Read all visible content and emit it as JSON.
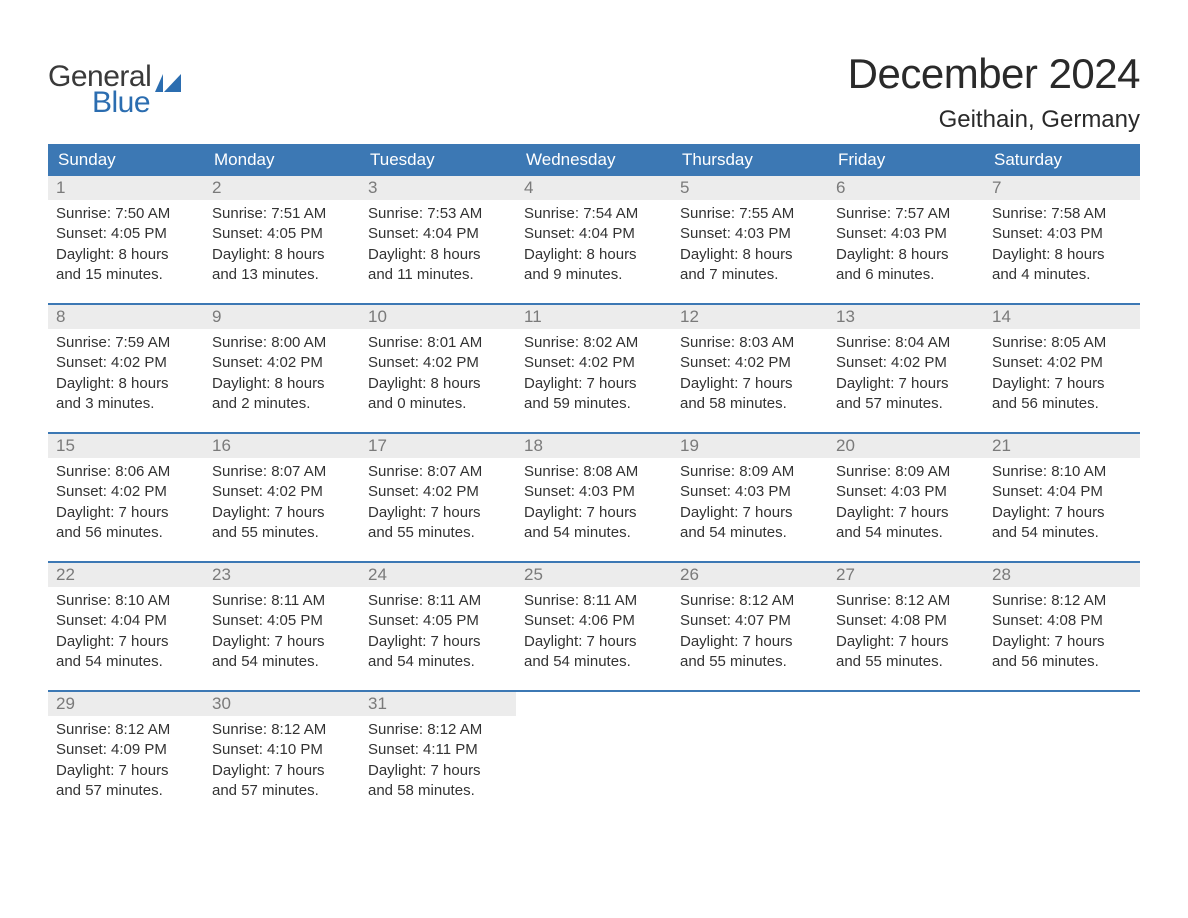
{
  "logo": {
    "text_general": "General",
    "text_blue": "Blue",
    "flag_color": "#2b6db0",
    "general_color": "#3a3a3a"
  },
  "header": {
    "title": "December 2024",
    "subtitle": "Geithain, Germany"
  },
  "colors": {
    "header_bg": "#3c78b4",
    "header_text": "#ffffff",
    "week_border": "#3c78b4",
    "daynum_bg": "#ececec",
    "daynum_text": "#7a7a7a",
    "body_text": "#333333",
    "page_bg": "#ffffff"
  },
  "typography": {
    "title_fontsize": 42,
    "subtitle_fontsize": 24,
    "dow_fontsize": 17,
    "daynum_fontsize": 17,
    "body_fontsize": 15
  },
  "layout": {
    "columns": 7,
    "rows": 5,
    "cell_min_height": 108
  },
  "days_of_week": [
    "Sunday",
    "Monday",
    "Tuesday",
    "Wednesday",
    "Thursday",
    "Friday",
    "Saturday"
  ],
  "weeks": [
    [
      {
        "n": "1",
        "sunrise": "Sunrise: 7:50 AM",
        "sunset": "Sunset: 4:05 PM",
        "d1": "Daylight: 8 hours",
        "d2": "and 15 minutes."
      },
      {
        "n": "2",
        "sunrise": "Sunrise: 7:51 AM",
        "sunset": "Sunset: 4:05 PM",
        "d1": "Daylight: 8 hours",
        "d2": "and 13 minutes."
      },
      {
        "n": "3",
        "sunrise": "Sunrise: 7:53 AM",
        "sunset": "Sunset: 4:04 PM",
        "d1": "Daylight: 8 hours",
        "d2": "and 11 minutes."
      },
      {
        "n": "4",
        "sunrise": "Sunrise: 7:54 AM",
        "sunset": "Sunset: 4:04 PM",
        "d1": "Daylight: 8 hours",
        "d2": "and 9 minutes."
      },
      {
        "n": "5",
        "sunrise": "Sunrise: 7:55 AM",
        "sunset": "Sunset: 4:03 PM",
        "d1": "Daylight: 8 hours",
        "d2": "and 7 minutes."
      },
      {
        "n": "6",
        "sunrise": "Sunrise: 7:57 AM",
        "sunset": "Sunset: 4:03 PM",
        "d1": "Daylight: 8 hours",
        "d2": "and 6 minutes."
      },
      {
        "n": "7",
        "sunrise": "Sunrise: 7:58 AM",
        "sunset": "Sunset: 4:03 PM",
        "d1": "Daylight: 8 hours",
        "d2": "and 4 minutes."
      }
    ],
    [
      {
        "n": "8",
        "sunrise": "Sunrise: 7:59 AM",
        "sunset": "Sunset: 4:02 PM",
        "d1": "Daylight: 8 hours",
        "d2": "and 3 minutes."
      },
      {
        "n": "9",
        "sunrise": "Sunrise: 8:00 AM",
        "sunset": "Sunset: 4:02 PM",
        "d1": "Daylight: 8 hours",
        "d2": "and 2 minutes."
      },
      {
        "n": "10",
        "sunrise": "Sunrise: 8:01 AM",
        "sunset": "Sunset: 4:02 PM",
        "d1": "Daylight: 8 hours",
        "d2": "and 0 minutes."
      },
      {
        "n": "11",
        "sunrise": "Sunrise: 8:02 AM",
        "sunset": "Sunset: 4:02 PM",
        "d1": "Daylight: 7 hours",
        "d2": "and 59 minutes."
      },
      {
        "n": "12",
        "sunrise": "Sunrise: 8:03 AM",
        "sunset": "Sunset: 4:02 PM",
        "d1": "Daylight: 7 hours",
        "d2": "and 58 minutes."
      },
      {
        "n": "13",
        "sunrise": "Sunrise: 8:04 AM",
        "sunset": "Sunset: 4:02 PM",
        "d1": "Daylight: 7 hours",
        "d2": "and 57 minutes."
      },
      {
        "n": "14",
        "sunrise": "Sunrise: 8:05 AM",
        "sunset": "Sunset: 4:02 PM",
        "d1": "Daylight: 7 hours",
        "d2": "and 56 minutes."
      }
    ],
    [
      {
        "n": "15",
        "sunrise": "Sunrise: 8:06 AM",
        "sunset": "Sunset: 4:02 PM",
        "d1": "Daylight: 7 hours",
        "d2": "and 56 minutes."
      },
      {
        "n": "16",
        "sunrise": "Sunrise: 8:07 AM",
        "sunset": "Sunset: 4:02 PM",
        "d1": "Daylight: 7 hours",
        "d2": "and 55 minutes."
      },
      {
        "n": "17",
        "sunrise": "Sunrise: 8:07 AM",
        "sunset": "Sunset: 4:02 PM",
        "d1": "Daylight: 7 hours",
        "d2": "and 55 minutes."
      },
      {
        "n": "18",
        "sunrise": "Sunrise: 8:08 AM",
        "sunset": "Sunset: 4:03 PM",
        "d1": "Daylight: 7 hours",
        "d2": "and 54 minutes."
      },
      {
        "n": "19",
        "sunrise": "Sunrise: 8:09 AM",
        "sunset": "Sunset: 4:03 PM",
        "d1": "Daylight: 7 hours",
        "d2": "and 54 minutes."
      },
      {
        "n": "20",
        "sunrise": "Sunrise: 8:09 AM",
        "sunset": "Sunset: 4:03 PM",
        "d1": "Daylight: 7 hours",
        "d2": "and 54 minutes."
      },
      {
        "n": "21",
        "sunrise": "Sunrise: 8:10 AM",
        "sunset": "Sunset: 4:04 PM",
        "d1": "Daylight: 7 hours",
        "d2": "and 54 minutes."
      }
    ],
    [
      {
        "n": "22",
        "sunrise": "Sunrise: 8:10 AM",
        "sunset": "Sunset: 4:04 PM",
        "d1": "Daylight: 7 hours",
        "d2": "and 54 minutes."
      },
      {
        "n": "23",
        "sunrise": "Sunrise: 8:11 AM",
        "sunset": "Sunset: 4:05 PM",
        "d1": "Daylight: 7 hours",
        "d2": "and 54 minutes."
      },
      {
        "n": "24",
        "sunrise": "Sunrise: 8:11 AM",
        "sunset": "Sunset: 4:05 PM",
        "d1": "Daylight: 7 hours",
        "d2": "and 54 minutes."
      },
      {
        "n": "25",
        "sunrise": "Sunrise: 8:11 AM",
        "sunset": "Sunset: 4:06 PM",
        "d1": "Daylight: 7 hours",
        "d2": "and 54 minutes."
      },
      {
        "n": "26",
        "sunrise": "Sunrise: 8:12 AM",
        "sunset": "Sunset: 4:07 PM",
        "d1": "Daylight: 7 hours",
        "d2": "and 55 minutes."
      },
      {
        "n": "27",
        "sunrise": "Sunrise: 8:12 AM",
        "sunset": "Sunset: 4:08 PM",
        "d1": "Daylight: 7 hours",
        "d2": "and 55 minutes."
      },
      {
        "n": "28",
        "sunrise": "Sunrise: 8:12 AM",
        "sunset": "Sunset: 4:08 PM",
        "d1": "Daylight: 7 hours",
        "d2": "and 56 minutes."
      }
    ],
    [
      {
        "n": "29",
        "sunrise": "Sunrise: 8:12 AM",
        "sunset": "Sunset: 4:09 PM",
        "d1": "Daylight: 7 hours",
        "d2": "and 57 minutes."
      },
      {
        "n": "30",
        "sunrise": "Sunrise: 8:12 AM",
        "sunset": "Sunset: 4:10 PM",
        "d1": "Daylight: 7 hours",
        "d2": "and 57 minutes."
      },
      {
        "n": "31",
        "sunrise": "Sunrise: 8:12 AM",
        "sunset": "Sunset: 4:11 PM",
        "d1": "Daylight: 7 hours",
        "d2": "and 58 minutes."
      },
      {
        "n": "",
        "sunrise": "",
        "sunset": "",
        "d1": "",
        "d2": ""
      },
      {
        "n": "",
        "sunrise": "",
        "sunset": "",
        "d1": "",
        "d2": ""
      },
      {
        "n": "",
        "sunrise": "",
        "sunset": "",
        "d1": "",
        "d2": ""
      },
      {
        "n": "",
        "sunrise": "",
        "sunset": "",
        "d1": "",
        "d2": ""
      }
    ]
  ]
}
